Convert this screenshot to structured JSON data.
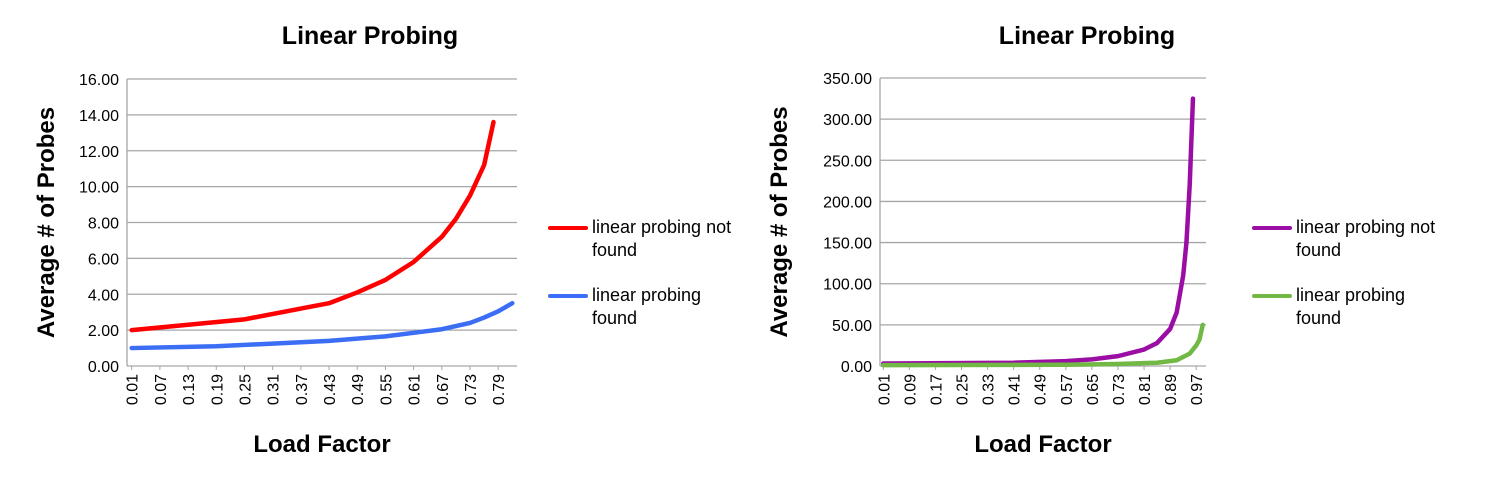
{
  "chart_data": [
    {
      "type": "line",
      "title": "Linear Probing",
      "x_label": "Load Factor",
      "y_label": "Average # of Probes",
      "xlim": [
        0,
        0.83
      ],
      "xticks": [
        0.01,
        0.07,
        0.13,
        0.19,
        0.25,
        0.31,
        0.37,
        0.43,
        0.49,
        0.55,
        0.61,
        0.67,
        0.73,
        0.79
      ],
      "ylim": [
        0,
        16
      ],
      "yticks": [
        {
          "value": 0,
          "label": "0.00"
        },
        {
          "value": 2,
          "label": "2.00"
        },
        {
          "value": 4,
          "label": "4.00"
        },
        {
          "value": 6,
          "label": "6.00"
        },
        {
          "value": 8,
          "label": "8.00"
        },
        {
          "value": 10,
          "label": "10.00"
        },
        {
          "value": 12,
          "label": "12.00"
        },
        {
          "value": 14,
          "label": "14.00"
        },
        {
          "value": 16,
          "label": "16.00"
        }
      ],
      "grid": true,
      "legend": "right",
      "series": [
        {
          "name": "linear probing not found",
          "color": "#ff0000",
          "x": [
            0.01,
            0.13,
            0.25,
            0.37,
            0.43,
            0.49,
            0.55,
            0.61,
            0.67,
            0.7,
            0.73,
            0.76,
            0.78
          ],
          "values": [
            2.0,
            2.3,
            2.6,
            3.2,
            3.5,
            4.1,
            4.8,
            5.8,
            7.2,
            8.2,
            9.5,
            11.2,
            13.6
          ]
        },
        {
          "name": "linear probing found",
          "color": "#3b6ef5",
          "x": [
            0.01,
            0.19,
            0.31,
            0.43,
            0.55,
            0.61,
            0.67,
            0.73,
            0.76,
            0.79,
            0.82
          ],
          "values": [
            1.0,
            1.1,
            1.25,
            1.4,
            1.65,
            1.85,
            2.05,
            2.4,
            2.7,
            3.05,
            3.5
          ]
        }
      ]
    },
    {
      "type": "line",
      "title": "Linear Probing",
      "x_label": "Load Factor",
      "y_label": "Average # of Probes",
      "xlim": [
        0,
        1.0
      ],
      "xticks": [
        0.01,
        0.09,
        0.17,
        0.25,
        0.33,
        0.41,
        0.49,
        0.57,
        0.65,
        0.73,
        0.81,
        0.89,
        0.97
      ],
      "ylim": [
        0,
        350
      ],
      "yticks": [
        {
          "value": 0,
          "label": "0.00"
        },
        {
          "value": 50,
          "label": "50.00"
        },
        {
          "value": 100,
          "label": "100.00"
        },
        {
          "value": 150,
          "label": "150.00"
        },
        {
          "value": 200,
          "label": "200.00"
        },
        {
          "value": 250,
          "label": "250.00"
        },
        {
          "value": 300,
          "label": "300.00"
        },
        {
          "value": 350,
          "label": "350.00"
        }
      ],
      "grid": true,
      "legend": "right",
      "series": [
        {
          "name": "linear probing not found",
          "color": "#9b0ea4",
          "x": [
            0.01,
            0.41,
            0.57,
            0.65,
            0.73,
            0.81,
            0.85,
            0.89,
            0.91,
            0.93,
            0.94,
            0.95,
            0.96
          ],
          "values": [
            3,
            4,
            6,
            8,
            12,
            20,
            28,
            45,
            65,
            110,
            150,
            220,
            325
          ]
        },
        {
          "name": "linear probing found",
          "color": "#72b844",
          "x": [
            0.01,
            0.57,
            0.73,
            0.85,
            0.91,
            0.95,
            0.97,
            0.98,
            0.99
          ],
          "values": [
            1,
            1.5,
            2.5,
            4,
            7,
            15,
            25,
            32,
            50
          ]
        }
      ]
    }
  ]
}
